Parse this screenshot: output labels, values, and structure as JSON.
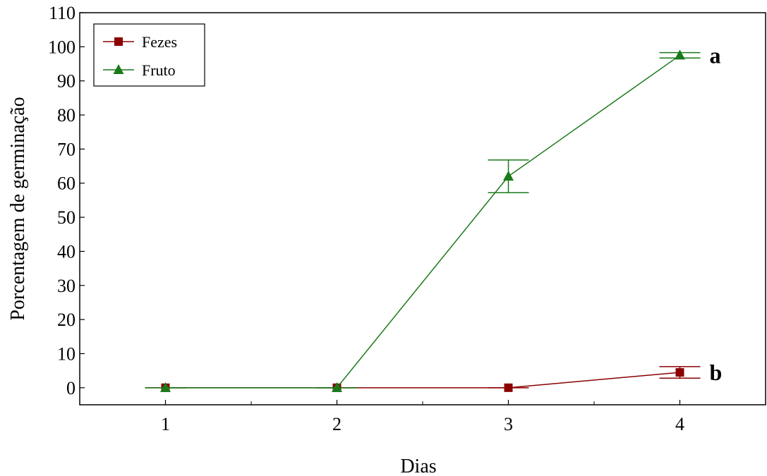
{
  "chart_data": {
    "type": "line",
    "xlabel": "Dias",
    "ylabel": "Porcentagem de germinação",
    "x": [
      1,
      2,
      3,
      4
    ],
    "xticks": [
      "1",
      "2",
      "3",
      "4"
    ],
    "xlim": [
      0.5,
      4.5
    ],
    "ylim": [
      -5,
      110
    ],
    "yticks": [
      0,
      10,
      20,
      30,
      40,
      50,
      60,
      70,
      80,
      90,
      100,
      110
    ],
    "grid": false,
    "legend_position": "top-left",
    "series": [
      {
        "name": "Fezes",
        "color": "#8B0000",
        "marker": "square",
        "values": [
          0,
          0,
          0,
          4.5
        ],
        "errors": [
          0,
          0,
          0,
          1.7
        ]
      },
      {
        "name": "Fruto",
        "color": "#1a7a1a",
        "marker": "triangle",
        "values": [
          0,
          0,
          62,
          97.5
        ],
        "errors": [
          0,
          0,
          4.8,
          0.8
        ]
      }
    ],
    "annotations": [
      {
        "text": "a",
        "x": 4,
        "y": 97.5
      },
      {
        "text": "b",
        "x": 4,
        "y": 4.5
      }
    ]
  }
}
